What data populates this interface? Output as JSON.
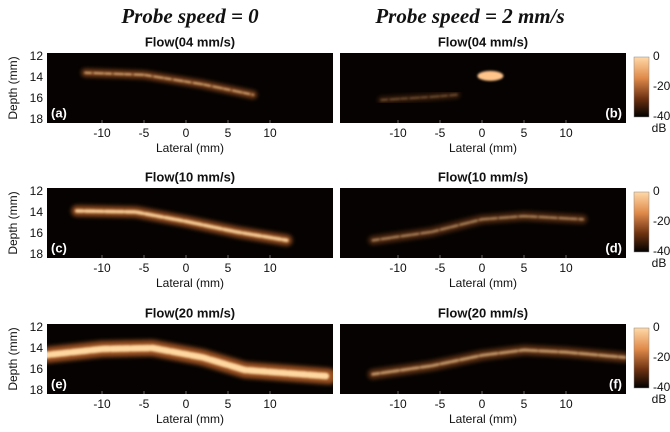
{
  "column_titles": [
    "Probe speed = 0",
    "Probe speed = 2 mm/s"
  ],
  "panels": [
    {
      "title": "Flow(04 mm/s)",
      "label": "(a)"
    },
    {
      "title": "Flow(04 mm/s)",
      "label": "(b)"
    },
    {
      "title": "Flow(10 mm/s)",
      "label": "(c)"
    },
    {
      "title": "Flow(10 mm/s)",
      "label": "(d)"
    },
    {
      "title": "Flow(20 mm/s)",
      "label": "(e)"
    },
    {
      "title": "Flow(20 mm/s)",
      "label": "(f)"
    }
  ],
  "x_axis_label": "Lateral (mm)",
  "y_axis_label": "Depth (mm)",
  "x_ticks": [
    -10,
    -5,
    0,
    5,
    10
  ],
  "y_ticks": [
    12,
    14,
    16,
    18
  ],
  "colorbar_ticks": [
    0,
    -20,
    -40
  ],
  "colorbar_unit": "dB"
}
